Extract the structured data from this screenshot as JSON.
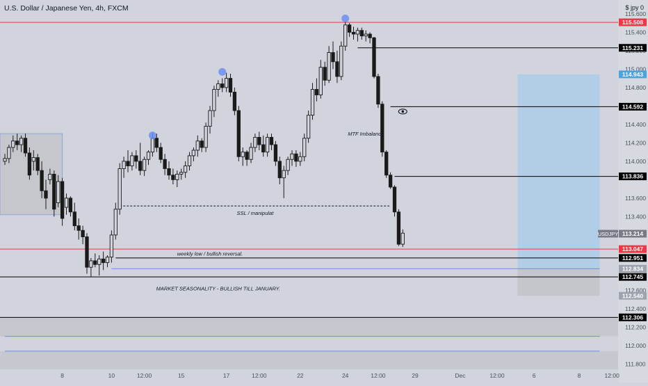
{
  "header": {
    "title": "U.S. Dollar / Japanese Yen, 4h, FXCM",
    "settings": "$ jpy 0"
  },
  "colors": {
    "background": "#d1d4dc",
    "axis_panel": "#d6d9e0",
    "candle": "#1a1a1a",
    "red_line": "#f23645",
    "black_line": "#000000",
    "blue_line": "#5b7fd6",
    "highlight": "#6d8ff0",
    "long_zone": "#b2cde6",
    "gray_zone": "#c4c6cc",
    "box_left": "#c5c7cc",
    "current_price_label": "#787b86"
  },
  "chart_data": {
    "type": "candlestick",
    "symbol": "USDJPY",
    "timeframe": "4h",
    "ylim": [
      111.75,
      115.75
    ],
    "y_ticks": [
      111.8,
      112.0,
      112.2,
      112.4,
      112.6,
      113.2,
      113.4,
      113.6,
      114.0,
      114.2,
      114.4,
      114.6,
      114.8,
      115.0,
      115.2,
      115.4,
      115.6
    ],
    "x_ticks": [
      {
        "label": "8",
        "bar": 14
      },
      {
        "label": "10",
        "bar": 26
      },
      {
        "label": "12:00",
        "bar": 34
      },
      {
        "label": "15",
        "bar": 43
      },
      {
        "label": "17",
        "bar": 54
      },
      {
        "label": "12:00",
        "bar": 62
      },
      {
        "label": "22",
        "bar": 72
      },
      {
        "label": "24",
        "bar": 83
      },
      {
        "label": "12:00",
        "bar": 91
      },
      {
        "label": "29",
        "bar": 100
      },
      {
        "label": "Dec",
        "bar": 111
      },
      {
        "label": "12:00",
        "bar": 120
      },
      {
        "label": "6",
        "bar": 129
      },
      {
        "label": "8",
        "bar": 140
      },
      {
        "label": "12:00",
        "bar": 148
      }
    ],
    "candles": [
      [
        114.0,
        114.08,
        113.96,
        114.03
      ],
      [
        114.03,
        114.18,
        113.98,
        114.15
      ],
      [
        114.15,
        114.28,
        114.1,
        114.22
      ],
      [
        114.22,
        114.3,
        114.12,
        114.18
      ],
      [
        114.18,
        114.28,
        114.1,
        114.25
      ],
      [
        114.25,
        114.3,
        114.05,
        114.09
      ],
      [
        114.09,
        114.15,
        113.8,
        113.85
      ],
      [
        114.0,
        114.12,
        113.9,
        114.04
      ],
      [
        114.04,
        114.08,
        113.85,
        113.9
      ],
      [
        113.9,
        114.0,
        113.6,
        113.68
      ],
      [
        113.68,
        113.8,
        113.48,
        113.6
      ],
      [
        113.8,
        113.92,
        113.75,
        113.86
      ],
      [
        113.86,
        113.9,
        113.4,
        113.48
      ],
      [
        113.55,
        113.85,
        113.5,
        113.78
      ],
      [
        113.78,
        113.82,
        113.3,
        113.38
      ],
      [
        113.5,
        113.65,
        113.42,
        113.6
      ],
      [
        113.6,
        113.62,
        113.4,
        113.45
      ],
      [
        113.45,
        113.55,
        113.25,
        113.3
      ],
      [
        113.3,
        113.38,
        113.15,
        113.25
      ],
      [
        113.25,
        113.3,
        113.1,
        113.18
      ],
      [
        113.18,
        113.22,
        112.78,
        112.85
      ],
      [
        112.85,
        112.95,
        112.75,
        112.92
      ],
      [
        112.92,
        113.0,
        112.85,
        112.88
      ],
      [
        112.88,
        112.98,
        112.76,
        112.94
      ],
      [
        112.94,
        113.02,
        112.82,
        112.9
      ],
      [
        112.9,
        112.98,
        112.85,
        112.96
      ],
      [
        112.96,
        113.25,
        112.9,
        113.2
      ],
      [
        113.2,
        113.55,
        113.15,
        113.48
      ],
      [
        113.48,
        113.98,
        113.42,
        113.92
      ],
      [
        113.92,
        114.05,
        113.82,
        114.0
      ],
      [
        114.0,
        114.12,
        113.88,
        113.95
      ],
      [
        113.95,
        114.1,
        113.9,
        114.06
      ],
      [
        114.06,
        114.12,
        113.92,
        114.0
      ],
      [
        114.0,
        114.2,
        113.85,
        113.9
      ],
      [
        113.9,
        114.05,
        113.84,
        114.02
      ],
      [
        114.02,
        114.12,
        113.96,
        114.1
      ],
      [
        114.1,
        114.32,
        114.05,
        114.25
      ],
      [
        114.25,
        114.3,
        114.1,
        114.15
      ],
      [
        114.15,
        114.2,
        113.98,
        114.02
      ],
      [
        114.02,
        114.08,
        113.85,
        113.92
      ],
      [
        113.92,
        114.0,
        113.8,
        113.85
      ],
      [
        113.85,
        113.92,
        113.75,
        113.8
      ],
      [
        113.8,
        113.9,
        113.72,
        113.86
      ],
      [
        113.86,
        113.92,
        113.8,
        113.88
      ],
      [
        113.88,
        114.0,
        113.82,
        113.95
      ],
      [
        113.95,
        114.1,
        113.9,
        114.06
      ],
      [
        114.06,
        114.15,
        114.0,
        114.12
      ],
      [
        114.12,
        114.28,
        114.05,
        114.22
      ],
      [
        114.22,
        114.25,
        114.1,
        114.15
      ],
      [
        114.15,
        114.42,
        114.1,
        114.38
      ],
      [
        114.38,
        114.6,
        114.3,
        114.55
      ],
      [
        114.55,
        114.82,
        114.48,
        114.78
      ],
      [
        114.78,
        114.88,
        114.7,
        114.84
      ],
      [
        114.84,
        114.9,
        114.75,
        114.8
      ],
      [
        114.8,
        114.96,
        114.75,
        114.9
      ],
      [
        114.9,
        114.95,
        114.7,
        114.75
      ],
      [
        114.75,
        114.8,
        114.5,
        114.55
      ],
      [
        114.55,
        114.6,
        114.0,
        114.05
      ],
      [
        114.05,
        114.15,
        113.95,
        114.1
      ],
      [
        114.1,
        114.12,
        113.95,
        114.02
      ],
      [
        114.02,
        114.2,
        113.98,
        114.15
      ],
      [
        114.15,
        114.3,
        114.1,
        114.26
      ],
      [
        114.26,
        114.32,
        114.12,
        114.18
      ],
      [
        114.18,
        114.28,
        114.05,
        114.1
      ],
      [
        114.1,
        114.3,
        114.05,
        114.26
      ],
      [
        114.26,
        114.3,
        114.12,
        114.18
      ],
      [
        114.18,
        114.22,
        113.95,
        114.0
      ],
      [
        114.0,
        114.05,
        113.75,
        113.82
      ],
      [
        113.82,
        113.95,
        113.6,
        113.9
      ],
      [
        113.9,
        114.05,
        113.85,
        114.02
      ],
      [
        114.02,
        114.12,
        113.95,
        114.08
      ],
      [
        114.08,
        114.12,
        113.94,
        114.0
      ],
      [
        114.0,
        114.1,
        113.95,
        114.05
      ],
      [
        114.05,
        114.3,
        114.0,
        114.25
      ],
      [
        114.25,
        114.55,
        114.2,
        114.5
      ],
      [
        114.5,
        114.85,
        114.45,
        114.78
      ],
      [
        114.78,
        114.9,
        114.65,
        114.72
      ],
      [
        114.72,
        115.1,
        114.68,
        115.02
      ],
      [
        115.02,
        115.08,
        114.82,
        114.88
      ],
      [
        114.88,
        115.25,
        114.85,
        115.18
      ],
      [
        115.18,
        115.3,
        115.0,
        115.08
      ],
      [
        115.08,
        115.2,
        114.85,
        114.92
      ],
      [
        114.92,
        115.3,
        114.88,
        115.25
      ],
      [
        115.25,
        115.52,
        115.2,
        115.48
      ],
      [
        115.48,
        115.5,
        115.35,
        115.4
      ],
      [
        115.4,
        115.46,
        115.32,
        115.38
      ],
      [
        115.38,
        115.45,
        115.3,
        115.42
      ],
      [
        115.42,
        115.45,
        115.32,
        115.36
      ],
      [
        115.36,
        115.42,
        115.3,
        115.38
      ],
      [
        115.38,
        115.4,
        115.28,
        115.34
      ],
      [
        115.34,
        115.35,
        114.9,
        114.92
      ],
      [
        114.92,
        114.95,
        114.58,
        114.62
      ],
      [
        114.62,
        114.65,
        114.05,
        114.1
      ],
      [
        114.1,
        114.12,
        113.82,
        113.85
      ],
      [
        113.85,
        113.88,
        113.7,
        113.72
      ],
      [
        113.72,
        113.74,
        113.4,
        113.45
      ],
      [
        113.45,
        113.48,
        113.08,
        113.1
      ],
      [
        113.1,
        113.26,
        113.07,
        113.22
      ]
    ],
    "highlights": [
      {
        "bar": 36,
        "price": 114.28
      },
      {
        "bar": 53,
        "price": 114.97
      },
      {
        "bar": 83,
        "price": 115.55
      }
    ],
    "levels": [
      {
        "price": 115.508,
        "label": "115.508",
        "color": "red",
        "x0": 0
      },
      {
        "price": 115.231,
        "label": "115.231",
        "color": "black",
        "x0": 86
      },
      {
        "price": 114.592,
        "label": "114.592",
        "color": "black",
        "x0": 94
      },
      {
        "price": 113.836,
        "label": "113.836",
        "color": "black",
        "x0": 95
      },
      {
        "price": 113.047,
        "label": "113.047",
        "color": "red",
        "x0": 0
      },
      {
        "price": 112.951,
        "label": "112.951",
        "color": "black",
        "x0": 27
      },
      {
        "price": 112.745,
        "label": "112.745",
        "color": "black",
        "x0": 0
      },
      {
        "price": 112.306,
        "label": "112.306",
        "color": "black",
        "x0": 0
      }
    ],
    "extra_labels": [
      {
        "price": 114.943,
        "label": "114.943",
        "style": "blue"
      },
      {
        "price": 112.834,
        "label": "112.834",
        "style": "gray"
      },
      {
        "price": 112.54,
        "label": "112.540",
        "style": "gray"
      }
    ],
    "current_price": {
      "symbol": "USDJPY",
      "price": 113.214,
      "label": "113.214"
    },
    "zones": {
      "left_box": {
        "bar_from": -2,
        "bar_to": 14,
        "top": 114.3,
        "bottom": 113.42
      },
      "long_target": {
        "bar_from": 125,
        "bar_to": 145,
        "top": 114.943,
        "bottom": 112.834
      },
      "long_stop": {
        "bar_from": 125,
        "bar_to": 145,
        "top": 112.834,
        "bottom": 112.54
      },
      "blue_line_1": {
        "price": 112.834,
        "bar_from": 26,
        "bar_to": 145
      },
      "blue_line_2": {
        "price": 112.1,
        "bar_from": 0,
        "bar_to": 145
      },
      "blue_line_3": {
        "price": 111.94,
        "bar_from": 0,
        "bar_to": 145
      },
      "bottom_band_1": {
        "top": 112.306,
        "bottom": 112.1
      },
      "bottom_band_2": {
        "top": 111.94,
        "bottom": 111.75
      }
    },
    "ssl_line": {
      "price": 113.515,
      "bar_from": 28,
      "bar_to": 94
    },
    "annotations": [
      {
        "text": "SSL / manipulat",
        "bar": 61,
        "price": 113.44
      },
      {
        "text": "weekly low / bullish reversal.",
        "bar": 50,
        "price": 113.0
      },
      {
        "text": "MTF Imbalance",
        "bar": 88,
        "price": 114.3
      },
      {
        "text": "MARKET SEASONALITY - BULLISH TILL JANUARY.",
        "bar": 52,
        "price": 112.62
      }
    ],
    "eye_marker": {
      "bar": 97,
      "price": 114.54
    }
  }
}
